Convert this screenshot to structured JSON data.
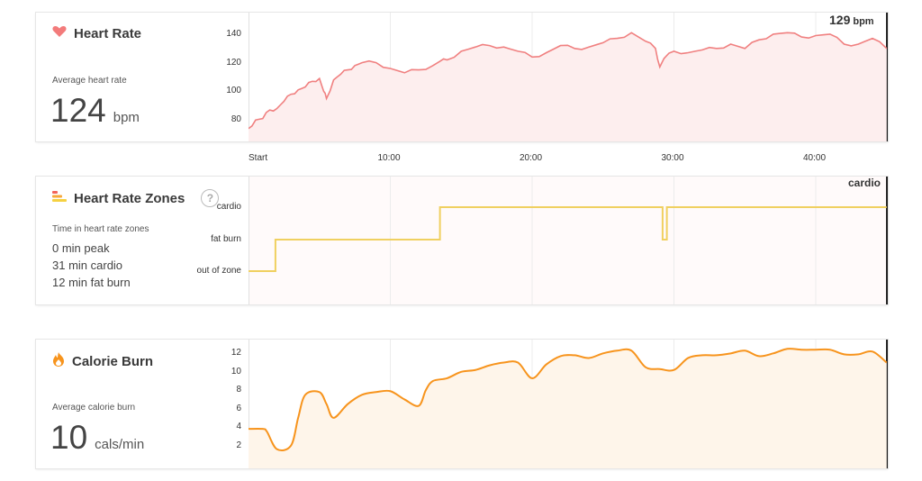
{
  "heart_rate": {
    "title": "Heart Rate",
    "subtitle": "Average heart rate",
    "value": "124",
    "unit": "bpm",
    "current": "129",
    "current_unit": "bpm",
    "icon": "heart-icon",
    "color": "#f08080"
  },
  "zones": {
    "title": "Heart Rate Zones",
    "subtitle": "Time in heart rate zones",
    "lines": [
      "0 min peak",
      "31 min cardio",
      "12 min fat burn"
    ],
    "current": "cardio",
    "icon": "zones-icon",
    "help_label": "?",
    "color": "#f0d060"
  },
  "calories": {
    "title": "Calorie Burn",
    "subtitle": "Average calorie burn",
    "value": "10",
    "unit": "cals/min",
    "icon": "flame-icon",
    "color": "#f7941d"
  },
  "x_axis": [
    "Start",
    "10:00",
    "20:00",
    "30:00",
    "40:00"
  ],
  "chart_data": [
    {
      "type": "line",
      "name": "Heart Rate",
      "yticks": [
        80,
        100,
        120,
        140
      ],
      "ylim": [
        65,
        150
      ],
      "xlim": [
        0,
        45
      ],
      "x": [
        0,
        0.5,
        1,
        1.5,
        2,
        2.5,
        3,
        3.5,
        4,
        4.5,
        5,
        5.3,
        5.5,
        6,
        6.5,
        7,
        7.5,
        8,
        9,
        10,
        11,
        12,
        13,
        13.5,
        14,
        15,
        16,
        17,
        18,
        19,
        20,
        21,
        22,
        23,
        24,
        25,
        26,
        27,
        28,
        28.7,
        29,
        29.3,
        30,
        31,
        32,
        33,
        34,
        35,
        36,
        37,
        38,
        39,
        40,
        41,
        42,
        43,
        44,
        45
      ],
      "y": [
        74,
        80,
        81,
        87,
        88,
        93,
        98,
        101,
        103,
        107,
        109,
        100,
        95,
        108,
        112,
        115,
        118,
        120,
        120,
        116,
        113,
        115,
        118,
        121,
        122,
        128,
        131,
        132,
        131,
        128,
        124,
        127,
        132,
        130,
        131,
        134,
        137,
        141,
        135,
        130,
        117,
        123,
        128,
        127,
        129,
        130,
        133,
        130,
        136,
        140,
        141,
        138,
        139,
        140,
        133,
        133,
        137,
        130
      ]
    },
    {
      "type": "line",
      "name": "Heart Rate Zones",
      "categories": [
        "out of zone",
        "fat burn",
        "cardio"
      ],
      "xlim": [
        0,
        45
      ],
      "segments": [
        {
          "x": 0,
          "zone": 0
        },
        {
          "x": 1.9,
          "zone": 1
        },
        {
          "x": 13.5,
          "zone": 2
        },
        {
          "x": 29.2,
          "zone": 1
        },
        {
          "x": 29.5,
          "zone": 2
        },
        {
          "x": 45,
          "zone": 2
        }
      ]
    },
    {
      "type": "area",
      "name": "Calorie Burn",
      "yticks": [
        2,
        4,
        6,
        8,
        10,
        12
      ],
      "ylim": [
        0,
        13.5
      ],
      "xlim": [
        0,
        45
      ],
      "x": [
        0,
        1,
        1.3,
        2,
        3,
        3.5,
        4,
        5,
        5.5,
        6,
        7,
        8,
        9,
        10,
        11,
        12,
        12.5,
        13,
        14,
        15,
        16,
        17,
        18,
        19,
        20,
        21,
        22,
        23,
        24,
        25,
        26,
        27,
        28,
        29,
        30,
        31,
        32,
        33,
        34,
        35,
        36,
        37,
        38,
        39,
        40,
        41,
        42,
        43,
        44,
        45
      ],
      "y": [
        3.8,
        3.8,
        3.5,
        1.6,
        2,
        5,
        7.5,
        7.8,
        6.5,
        5,
        6.5,
        7.5,
        7.8,
        7.9,
        7,
        6.3,
        8,
        9,
        9.3,
        10,
        10.2,
        10.7,
        11,
        11,
        9.3,
        10.8,
        11.7,
        11.8,
        11.5,
        12,
        12.3,
        12.3,
        10.5,
        10.3,
        10.2,
        11.5,
        11.8,
        11.8,
        12,
        12.3,
        11.7,
        12,
        12.5,
        12.4,
        12.4,
        12.4,
        11.9,
        11.9,
        12.2,
        11
      ]
    }
  ]
}
